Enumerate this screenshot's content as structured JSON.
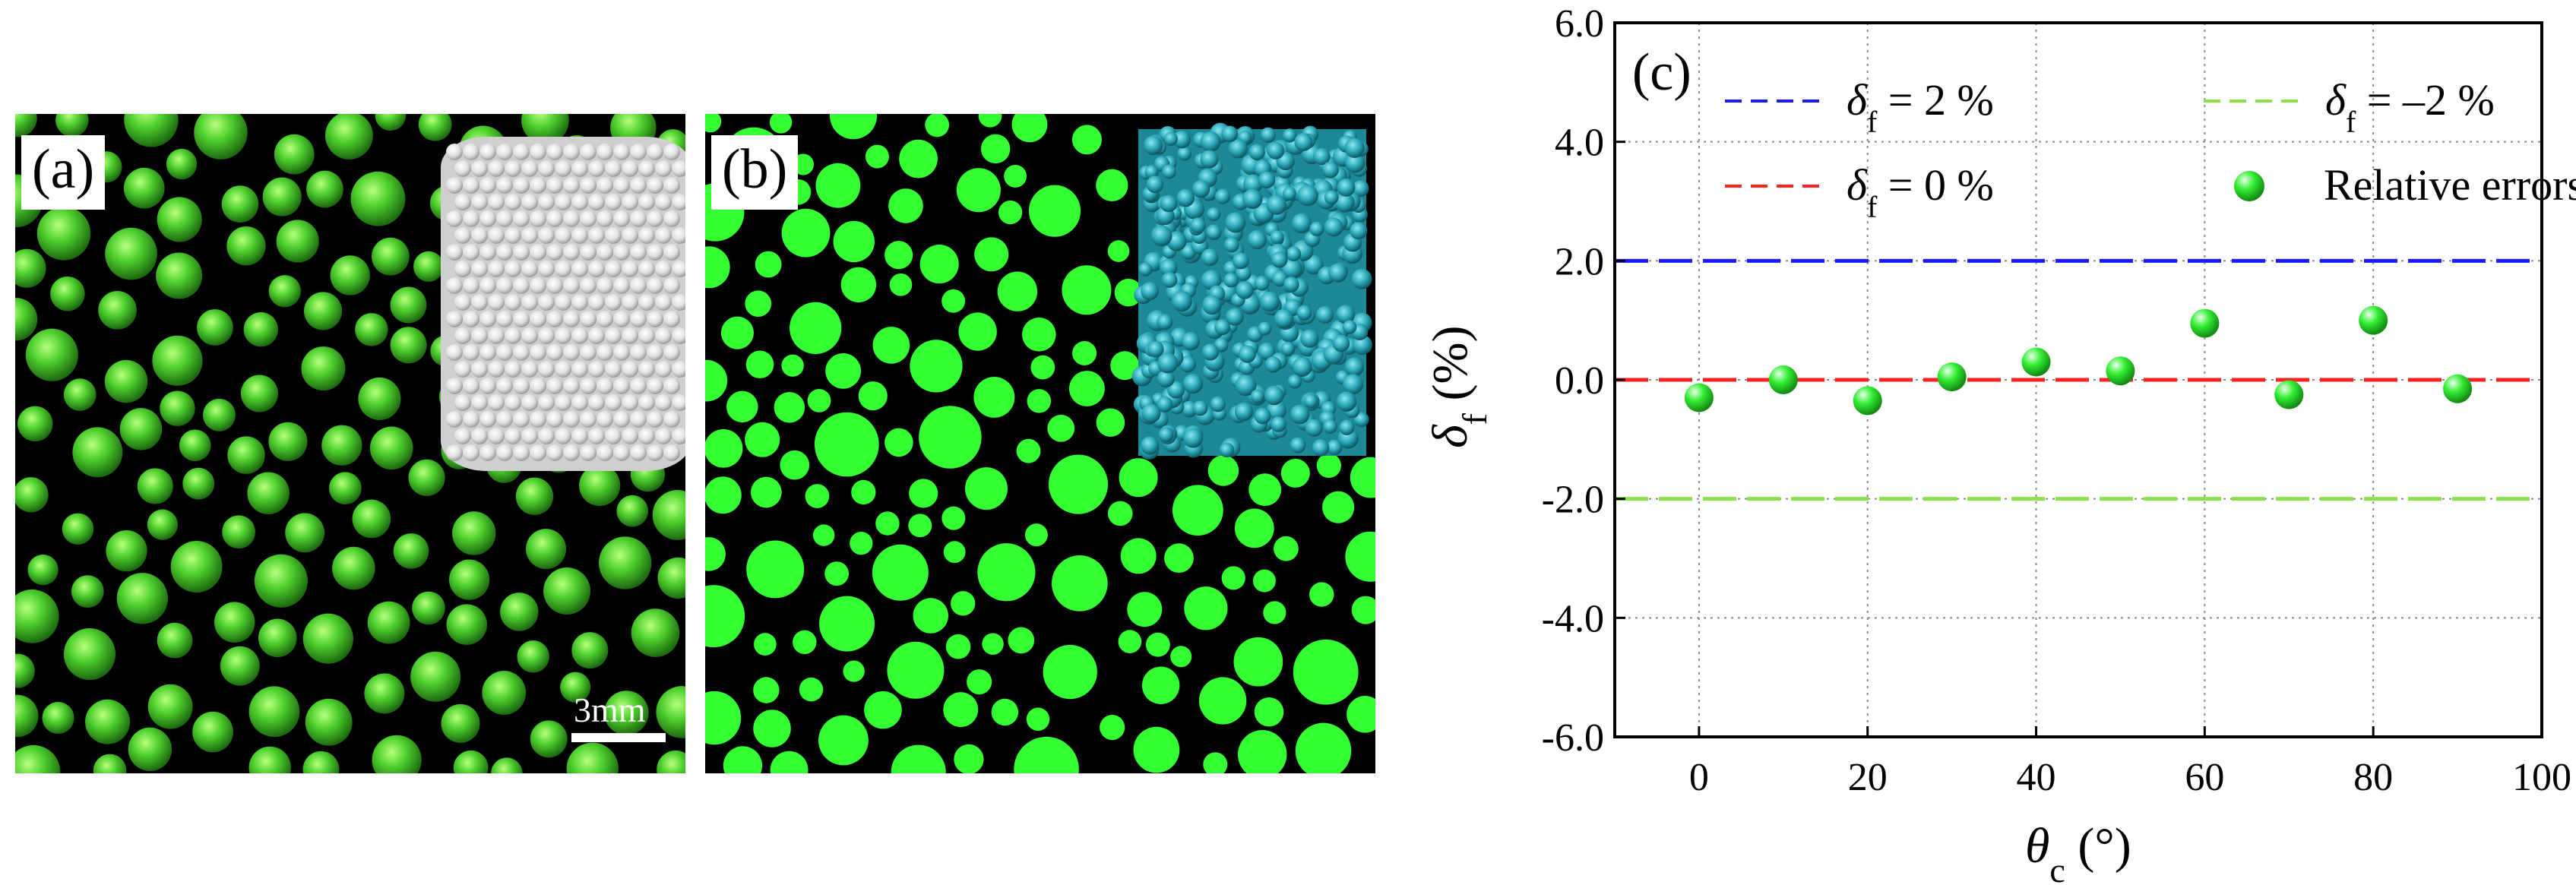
{
  "panels": {
    "a": {
      "label": "(a)",
      "scale_text": "3mm"
    },
    "b": {
      "label": "(b)"
    }
  },
  "colors": {
    "sphere_green": "#33ff33",
    "photo_green": "#4fd12e",
    "inset_white": "#e6e6e6",
    "inset_cyan": "#2aa7b8"
  },
  "chart_data": {
    "type": "scatter",
    "panel_label": "(c)",
    "x": [
      0,
      10,
      20,
      30,
      40,
      50,
      60,
      70,
      80,
      90
    ],
    "y": [
      -0.3,
      0.0,
      -0.35,
      0.05,
      0.3,
      0.15,
      0.95,
      -0.25,
      1.0,
      -0.15
    ],
    "series_name": "Relative errors",
    "xlim": [
      -10,
      100
    ],
    "ylim": [
      -6.0,
      6.0
    ],
    "x_ticks": [
      "0",
      "20",
      "40",
      "60",
      "80",
      "100"
    ],
    "y_ticks": [
      "-6.0",
      "-4.0",
      "-2.0",
      "0.0",
      "2.0",
      "4.0",
      "6.0"
    ],
    "xlabel": {
      "main": "θ",
      "sub": "c",
      "unit": " (°)"
    },
    "ylabel": {
      "main": "δ",
      "sub": "f",
      "unit": " (%)"
    },
    "grid": true,
    "legend_position": "top",
    "reference_lines": [
      {
        "value": 2.0,
        "color": "#1a1aff",
        "label_main": "δ",
        "label_sub": "f",
        "label_tail": " = 2 %"
      },
      {
        "value": 0.0,
        "color": "#ff2222",
        "label_main": "δ",
        "label_sub": "f",
        "label_tail": " = 0 %"
      },
      {
        "value": -2.0,
        "color": "#8ce04a",
        "label_main": "δ",
        "label_sub": "f",
        "label_tail": " = –2 %"
      }
    ],
    "marker_color": "#33ee33"
  }
}
